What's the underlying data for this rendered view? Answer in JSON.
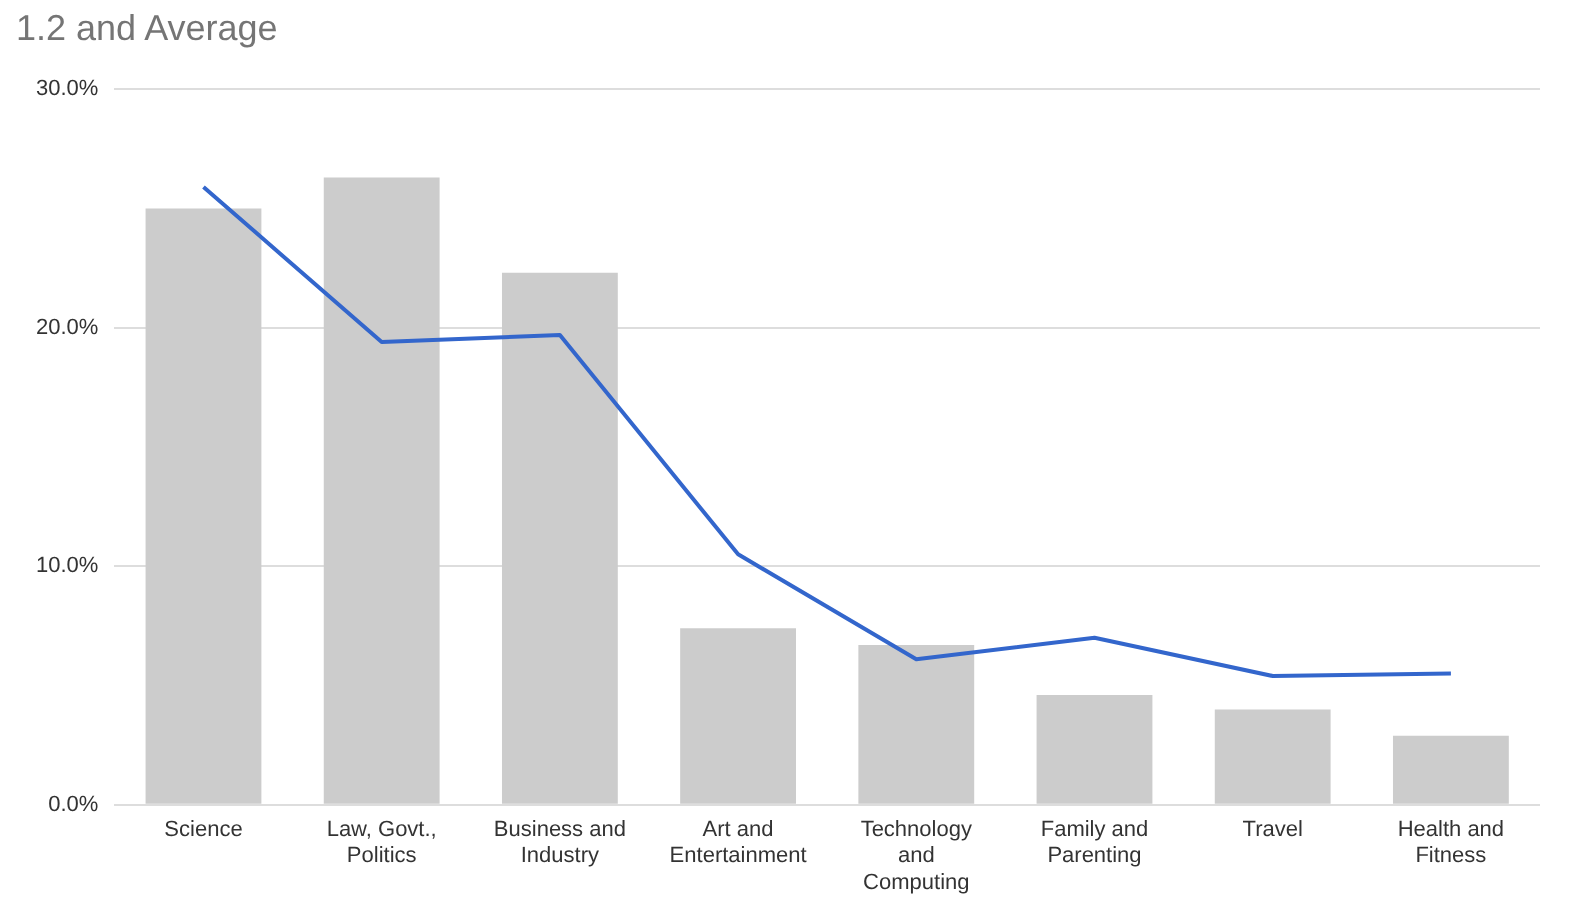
{
  "chart_data": {
    "type": "bar",
    "title": "1.2 and Average",
    "categories": [
      "Science",
      "Law, Govt., Politics",
      "Business and Industry",
      "Art and Entertainment",
      "Technology and Computing",
      "Family and Parenting",
      "Travel",
      "Health and Fitness"
    ],
    "series": [
      {
        "color": "#cccccc",
        "values": [
          25.0,
          26.3,
          22.3,
          7.4,
          6.7,
          4.6,
          4.0,
          2.9
        ]
      },
      {
        "type": "line",
        "color": "#3366cc",
        "values": [
          25.9,
          19.4,
          19.7,
          10.5,
          6.1,
          7.0,
          5.4,
          5.5
        ]
      }
    ],
    "ylim": [
      0,
      30
    ],
    "yticks": [
      {
        "value": 0,
        "label": "0.0%"
      },
      {
        "value": 10,
        "label": "10.0%"
      },
      {
        "value": 20,
        "label": "20.0%"
      },
      {
        "value": 30,
        "label": "30.0%"
      }
    ],
    "grid": "y",
    "legend": false,
    "marker": "none",
    "line_style": "solid"
  }
}
